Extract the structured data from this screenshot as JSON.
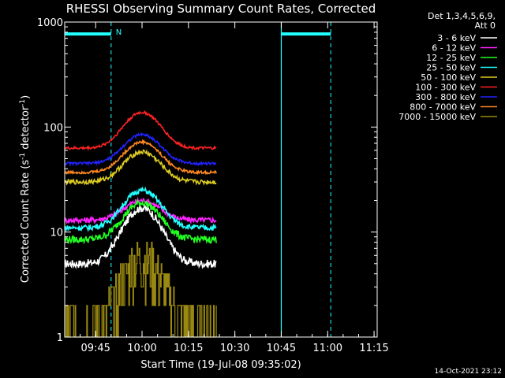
{
  "chart_data": {
    "type": "line",
    "title": "RHESSI Observing Summary Count Rates, Corrected",
    "xlabel": "Start Time (19-Jul-08 09:35:02)",
    "ylabel_main": "Corrected Count Rate (s",
    "ylabel_sup1": "-1",
    "ylabel_mid": " detector",
    "ylabel_sup2": "-1",
    "ylabel_end": ")",
    "y_scale": "log",
    "ylim": [
      1,
      1000
    ],
    "xlim_minutes": [
      0,
      101
    ],
    "x_tick_minutes": [
      10,
      25,
      40,
      55,
      70,
      85,
      100
    ],
    "x_tick_labels": [
      "09:45",
      "10:00",
      "10:15",
      "10:30",
      "10:45",
      "11:00",
      "11:15"
    ],
    "y_ticks": [
      1,
      10,
      100,
      1000
    ],
    "y_tick_labels": [
      "1",
      "10",
      "100",
      "1000"
    ],
    "legend_header": [
      "Det 1,3,4,5,6,9,",
      "Att 0"
    ],
    "legend_position": "top-right",
    "data_start_minute": 0,
    "data_end_minute": 49,
    "peak_minute": 25,
    "series": [
      {
        "name": "3 - 6 keV",
        "color": "#ffffff",
        "base": 5.0,
        "peak": 17,
        "noise": 0.09
      },
      {
        "name": "6 - 12 keV",
        "color": "#ff22ff",
        "base": 13,
        "peak": 20,
        "noise": 0.06
      },
      {
        "name": "12 - 25 keV",
        "color": "#22ff22",
        "base": 8.5,
        "peak": 19,
        "noise": 0.08
      },
      {
        "name": "25 - 50 keV",
        "color": "#22ffff",
        "base": 11,
        "peak": 25,
        "noise": 0.06
      },
      {
        "name": "50 - 100 keV",
        "color": "#ddcc22",
        "base": 30,
        "peak": 58,
        "noise": 0.05
      },
      {
        "name": "100 - 300 keV",
        "color": "#ff2222",
        "base": 63,
        "peak": 138,
        "noise": 0.03
      },
      {
        "name": "300 - 800 keV",
        "color": "#2222ff",
        "base": 45,
        "peak": 85,
        "noise": 0.03
      },
      {
        "name": "800 - 7000 keV",
        "color": "#ff8822",
        "base": 37,
        "peak": 72,
        "noise": 0.03
      },
      {
        "name": "7000 - 15000 keV",
        "color": "#998811",
        "base": 1.3,
        "peak": 5.5,
        "noise": 0.6
      }
    ],
    "annotations": {
      "n_label": "N",
      "night_spans_minutes": [
        [
          0,
          15
        ],
        [
          70,
          86
        ]
      ],
      "night_bar_value": 770,
      "marker_color": "#22ffff"
    },
    "timestamp": "14-Oct-2021 23:12"
  }
}
